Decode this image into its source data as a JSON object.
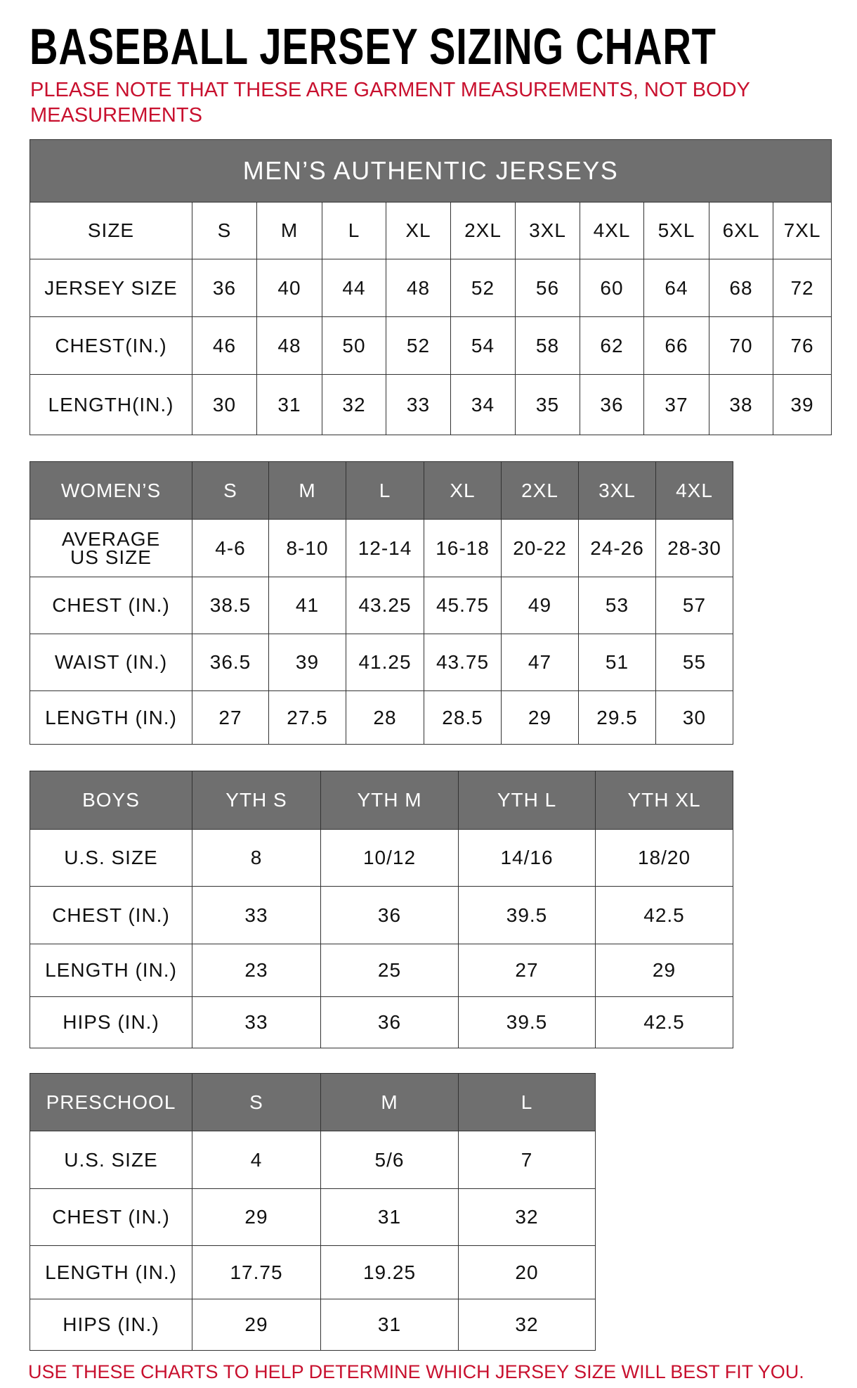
{
  "title": "BASEBALL JERSEY SIZING CHART",
  "note": "PLEASE NOTE THAT THESE ARE GARMENT MEASUREMENTS, NOT BODY MEASUREMENTS",
  "footer": "USE THESE CHARTS TO HELP DETERMINE WHICH JERSEY SIZE WILL BEST FIT YOU.",
  "colors": {
    "header_bg": "#6f6f6f",
    "accent_red": "#c8102e"
  },
  "tables": [
    {
      "name": "mens",
      "band": "MEN’S AUTHENTIC JERSEYS",
      "header_style": "plain",
      "rows": [
        [
          "SIZE",
          "S",
          "M",
          "L",
          "XL",
          "2XL",
          "3XL",
          "4XL",
          "5XL",
          "6XL",
          "7XL"
        ],
        [
          "JERSEY SIZE",
          "36",
          "40",
          "44",
          "48",
          "52",
          "56",
          "60",
          "64",
          "68",
          "72"
        ],
        [
          "CHEST(IN.)",
          "46",
          "48",
          "50",
          "52",
          "54",
          "58",
          "62",
          "66",
          "70",
          "76"
        ],
        [
          "LENGTH(IN.)",
          "30",
          "31",
          "32",
          "33",
          "34",
          "35",
          "36",
          "37",
          "38",
          "39"
        ]
      ]
    },
    {
      "name": "womens",
      "header_style": "dark",
      "rows": [
        [
          "WOMEN’S",
          "S",
          "M",
          "L",
          "XL",
          "2XL",
          "3XL",
          "4XL"
        ],
        [
          "AVERAGE US SIZE",
          "4-6",
          "8-10",
          "12-14",
          "16-18",
          "20-22",
          "24-26",
          "28-30"
        ],
        [
          "CHEST (IN.)",
          "38.5",
          "41",
          "43.25",
          "45.75",
          "49",
          "53",
          "57"
        ],
        [
          "WAIST (IN.)",
          "36.5",
          "39",
          "41.25",
          "43.75",
          "47",
          "51",
          "55"
        ],
        [
          "LENGTH (IN.)",
          "27",
          "27.5",
          "28",
          "28.5",
          "29",
          "29.5",
          "30"
        ]
      ]
    },
    {
      "name": "boys",
      "header_style": "dark",
      "rows": [
        [
          "BOYS",
          "YTH S",
          "YTH M",
          "YTH L",
          "YTH XL"
        ],
        [
          "U.S. SIZE",
          "8",
          "10/12",
          "14/16",
          "18/20"
        ],
        [
          "CHEST (IN.)",
          "33",
          "36",
          "39.5",
          "42.5"
        ],
        [
          "LENGTH (IN.)",
          "23",
          "25",
          "27",
          "29"
        ],
        [
          "HIPS (IN.)",
          "33",
          "36",
          "39.5",
          "42.5"
        ]
      ]
    },
    {
      "name": "preschool",
      "header_style": "dark",
      "rows": [
        [
          "PRESCHOOL",
          "S",
          "M",
          "L"
        ],
        [
          "U.S. SIZE",
          "4",
          "5/6",
          "7"
        ],
        [
          "CHEST (IN.)",
          "29",
          "31",
          "32"
        ],
        [
          "LENGTH (IN.)",
          "17.75",
          "19.25",
          "20"
        ],
        [
          "HIPS (IN.)",
          "29",
          "31",
          "32"
        ]
      ]
    }
  ]
}
